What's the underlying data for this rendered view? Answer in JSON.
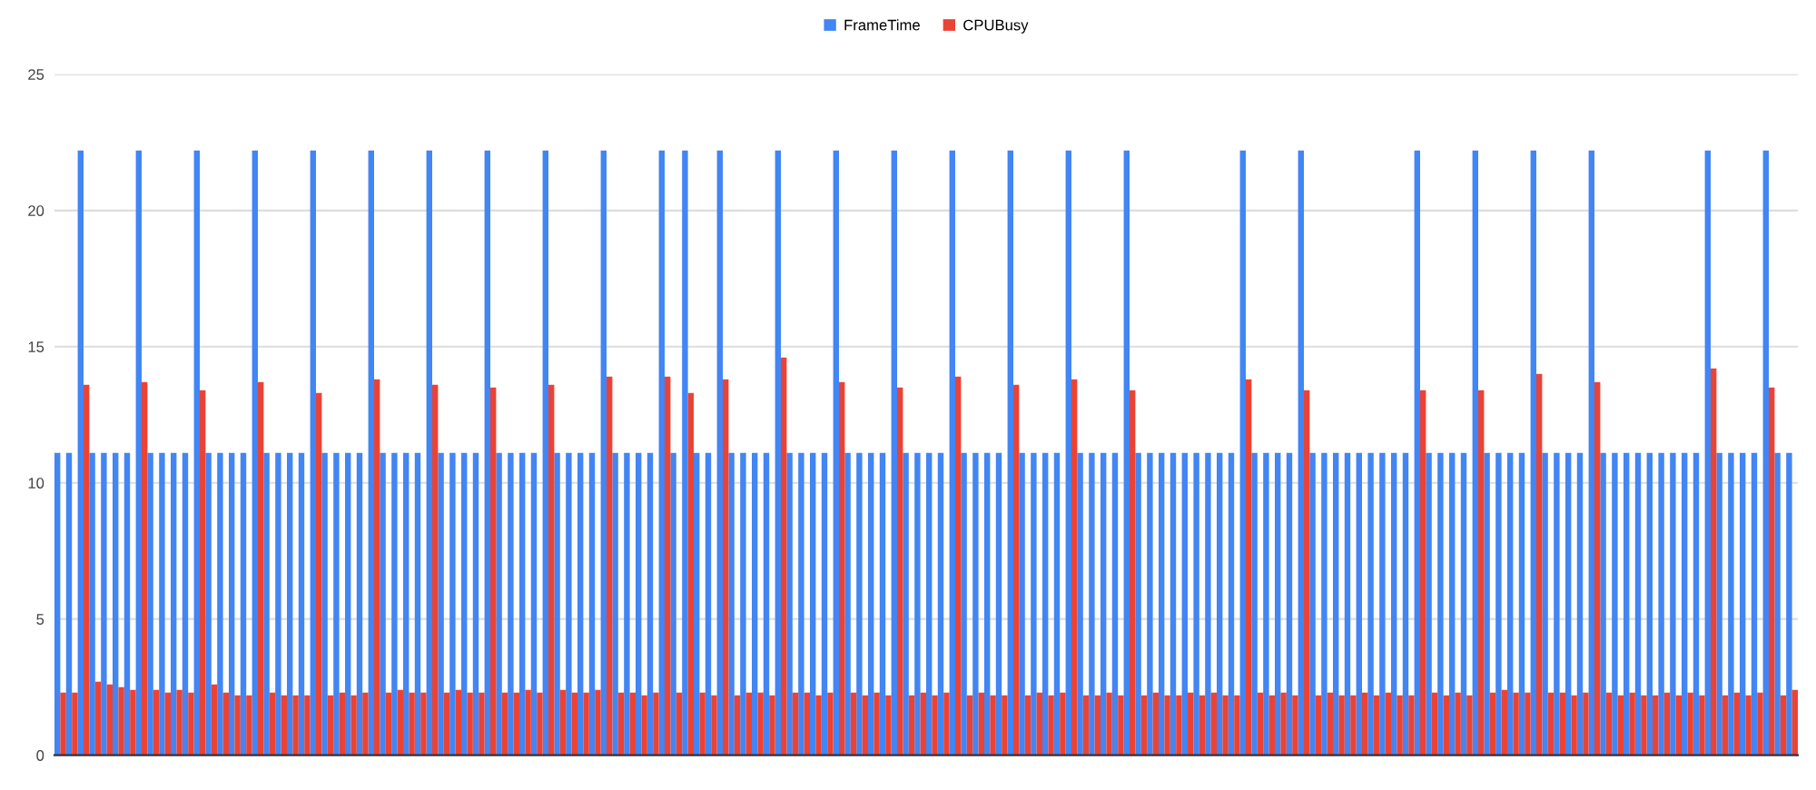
{
  "chart_data": {
    "type": "bar",
    "legend": "top",
    "grid": "y",
    "tick_labels": "y",
    "ylim": [
      0,
      25
    ],
    "yticks": [
      0,
      5,
      10,
      15,
      20,
      25
    ],
    "categories": [
      null,
      null,
      null,
      null,
      null,
      null,
      null,
      null,
      null,
      null,
      null,
      null,
      null,
      null,
      null,
      null,
      null,
      null,
      null,
      null,
      null,
      null,
      null,
      null,
      null,
      null,
      null,
      null,
      null,
      null,
      null,
      null,
      null,
      null,
      null,
      null,
      null,
      null,
      null,
      null,
      null,
      null,
      null,
      null,
      null,
      null,
      null,
      null,
      null,
      null,
      null,
      null,
      null,
      null,
      null,
      null,
      null,
      null,
      null,
      null,
      null,
      null,
      null,
      null,
      null,
      null,
      null,
      null,
      null,
      null,
      null,
      null,
      null,
      null,
      null,
      null,
      null,
      null,
      null,
      null,
      null,
      null,
      null,
      null,
      null,
      null,
      null,
      null,
      null,
      null,
      null,
      null,
      null,
      null,
      null,
      null,
      null,
      null,
      null,
      null,
      null,
      null,
      null,
      null,
      null,
      null,
      null,
      null,
      null,
      null,
      null,
      null,
      null,
      null,
      null,
      null,
      null,
      null,
      null,
      null,
      null,
      null,
      null,
      null,
      null,
      null,
      null,
      null,
      null,
      null,
      null,
      null,
      null,
      null,
      null,
      null,
      null,
      null,
      null,
      null,
      null,
      null,
      null,
      null,
      null,
      null,
      null,
      null,
      null,
      null
    ],
    "series": [
      {
        "name": "FrameTime",
        "color": "#4285f4",
        "values": [
          11.1,
          11.1,
          22.2,
          11.1,
          11.1,
          11.1,
          11.1,
          22.2,
          11.1,
          11.1,
          11.1,
          11.1,
          22.2,
          11.1,
          11.1,
          11.1,
          11.1,
          22.2,
          11.1,
          11.1,
          11.1,
          11.1,
          22.2,
          11.1,
          11.1,
          11.1,
          11.1,
          22.2,
          11.1,
          11.1,
          11.1,
          11.1,
          22.2,
          11.1,
          11.1,
          11.1,
          11.1,
          22.2,
          11.1,
          11.1,
          11.1,
          11.1,
          22.2,
          11.1,
          11.1,
          11.1,
          11.1,
          22.2,
          11.1,
          11.1,
          11.1,
          11.1,
          22.2,
          11.1,
          22.2,
          11.1,
          11.1,
          22.2,
          11.1,
          11.1,
          11.1,
          11.1,
          22.2,
          11.1,
          11.1,
          11.1,
          11.1,
          22.2,
          11.1,
          11.1,
          11.1,
          11.1,
          22.2,
          11.1,
          11.1,
          11.1,
          11.1,
          22.2,
          11.1,
          11.1,
          11.1,
          11.1,
          22.2,
          11.1,
          11.1,
          11.1,
          11.1,
          22.2,
          11.1,
          11.1,
          11.1,
          11.1,
          22.2,
          11.1,
          11.1,
          11.1,
          11.1,
          11.1,
          11.1,
          11.1,
          11.1,
          11.1,
          22.2,
          11.1,
          11.1,
          11.1,
          11.1,
          22.2,
          11.1,
          11.1,
          11.1,
          11.1,
          11.1,
          11.1,
          11.1,
          11.1,
          11.1,
          22.2,
          11.1,
          11.1,
          11.1,
          11.1,
          22.2,
          11.1,
          11.1,
          11.1,
          11.1,
          22.2,
          11.1,
          11.1,
          11.1,
          11.1,
          22.2,
          11.1,
          11.1,
          11.1,
          11.1,
          11.1,
          11.1,
          11.1,
          11.1,
          11.1,
          22.2,
          11.1,
          11.1,
          11.1,
          11.1,
          22.2,
          11.1,
          11.1
        ]
      },
      {
        "name": "CPUBusy",
        "color": "#ea4335",
        "values": [
          2.3,
          2.3,
          13.6,
          2.7,
          2.6,
          2.5,
          2.4,
          13.7,
          2.4,
          2.3,
          2.4,
          2.3,
          13.4,
          2.6,
          2.3,
          2.2,
          2.2,
          13.7,
          2.3,
          2.2,
          2.2,
          2.2,
          13.3,
          2.2,
          2.3,
          2.2,
          2.3,
          13.8,
          2.3,
          2.4,
          2.3,
          2.3,
          13.6,
          2.3,
          2.4,
          2.3,
          2.3,
          13.5,
          2.3,
          2.3,
          2.4,
          2.3,
          13.6,
          2.4,
          2.3,
          2.3,
          2.4,
          13.9,
          2.3,
          2.3,
          2.2,
          2.3,
          13.9,
          2.3,
          13.3,
          2.3,
          2.2,
          13.8,
          2.2,
          2.3,
          2.3,
          2.2,
          14.6,
          2.3,
          2.3,
          2.2,
          2.3,
          13.7,
          2.3,
          2.2,
          2.3,
          2.2,
          13.5,
          2.2,
          2.3,
          2.2,
          2.3,
          13.9,
          2.2,
          2.3,
          2.2,
          2.2,
          13.6,
          2.2,
          2.3,
          2.2,
          2.3,
          13.8,
          2.2,
          2.2,
          2.3,
          2.2,
          13.4,
          2.2,
          2.3,
          2.2,
          2.2,
          2.3,
          2.2,
          2.3,
          2.2,
          2.2,
          13.8,
          2.3,
          2.2,
          2.3,
          2.2,
          13.4,
          2.2,
          2.3,
          2.2,
          2.2,
          2.3,
          2.2,
          2.3,
          2.2,
          2.2,
          13.4,
          2.3,
          2.2,
          2.3,
          2.2,
          13.4,
          2.3,
          2.4,
          2.3,
          2.3,
          14.0,
          2.3,
          2.3,
          2.2,
          2.3,
          13.7,
          2.3,
          2.2,
          2.3,
          2.2,
          2.2,
          2.3,
          2.2,
          2.3,
          2.2,
          14.2,
          2.2,
          2.3,
          2.2,
          2.3,
          13.5,
          2.2,
          2.4
        ]
      }
    ]
  }
}
